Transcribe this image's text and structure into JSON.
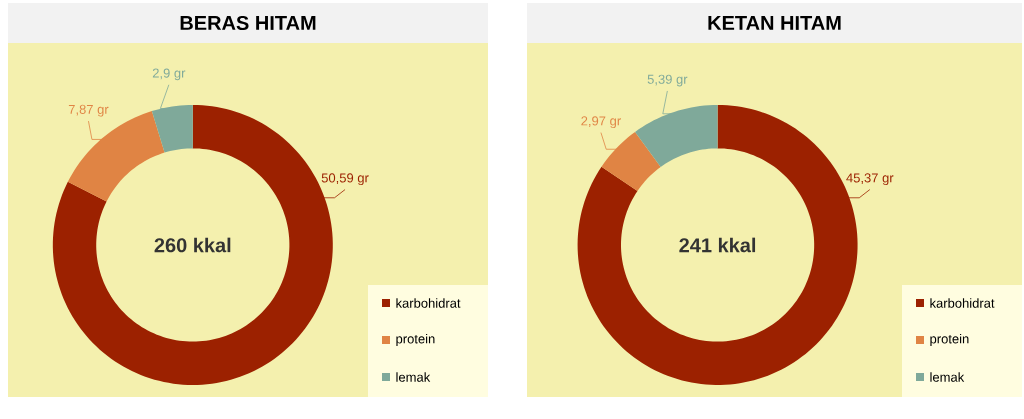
{
  "chart_data": [
    {
      "type": "donut",
      "title": "BERAS HITAM",
      "categories": [
        "karbohidrat",
        "protein",
        "lemak"
      ],
      "values": [
        50.59,
        7.87,
        2.9
      ],
      "colors": [
        "#9c2100",
        "#e08444",
        "#7fa99a"
      ],
      "value_labels": [
        "50,59 gr",
        "7,87 gr",
        "2,9 gr"
      ],
      "legend": "bottom right",
      "annotations": [
        "260 kkal"
      ]
    },
    {
      "type": "donut",
      "title": "KETAN HITAM",
      "categories": [
        "karbohidrat",
        "protein",
        "lemak"
      ],
      "values": [
        45.37,
        2.97,
        5.39
      ],
      "colors": [
        "#9c2100",
        "#e08444",
        "#7fa99a"
      ],
      "value_labels": [
        "45,37 gr",
        "2,97 gr",
        "5,39 gr"
      ],
      "legend": "bottom right",
      "annotations": [
        "241 kkal"
      ]
    }
  ]
}
